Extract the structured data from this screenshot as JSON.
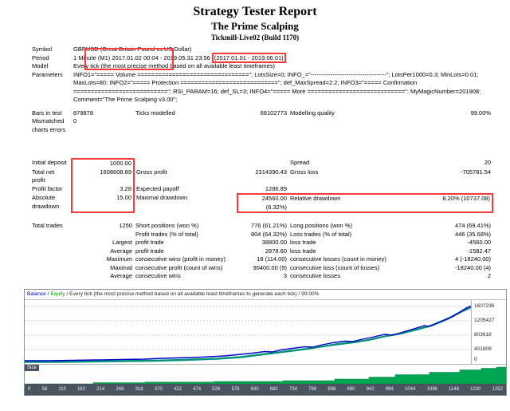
{
  "annotation_color": "#fb3b3b",
  "header": {
    "title": "Strategy Tester Report",
    "subtitle": "The Prime Scalping",
    "server": "Tickmill-Live02 (Build 1170)"
  },
  "table": {
    "symbol": {
      "label": "Symbol",
      "value": "GBPUSD (Great Britain Pound vs US Dollar)"
    },
    "period": {
      "label": "Period",
      "value": "1 Minute (M1) 2017.01.02 00:04 - 2019.05.31 23:56 ",
      "range": "(2017.01.01 - 2019.06.01)"
    },
    "model": {
      "label": "Model",
      "value": "Every tick (the most precise method based on all available least timeframes)"
    },
    "parameters": {
      "label": "Parameters",
      "value": "INFO1=\"===== Volume ================================\"; LotsSize=0; INFO_=\"--------------------------------------\"; LotsPer1000=0.3; MinLots=0.01; MaxLots=80; INFO2=\"===== Protection ============================\"; def_MaxSpread=2.2; INFO3=\"===== Confirmation ===========================\"; RSI_PARAM=16; def_SL=3; INFO4=\"===== More ============================\"; MyMagicNumber=201908; Comment=\"The Prime Scalping v3.00\";"
    },
    "bars": {
      "label": "Bars in test",
      "value": "879878"
    },
    "ticks": {
      "label": "Ticks modelled",
      "value": "68102773"
    },
    "quality": {
      "label": "Modelling quality",
      "value": "99.00%"
    },
    "mismatched": {
      "label": "Mismatched charts errors",
      "value": "0"
    },
    "deposit": {
      "label": "Initial deposit",
      "value": "1000.00"
    },
    "spread": {
      "label": "Spread",
      "value": "20"
    },
    "net_profit": {
      "label": "Total net profit",
      "value": "1608608.89"
    },
    "gross_profit": {
      "label": "Gross profit",
      "value": "2314390.43"
    },
    "gross_loss": {
      "label": "Gross loss",
      "value": "-705781.54"
    },
    "profit_factor": {
      "label": "Profit factor",
      "value": "3.28"
    },
    "expected_payoff": {
      "label": "Expected payoff",
      "value": "1286.89"
    },
    "abs_dd": {
      "label": "Absolute drawdown",
      "value": "15.00"
    },
    "max_dd": {
      "label": "Maximal drawdown",
      "value": "24560.00 (6.32%)"
    },
    "rel_dd": {
      "label": "Relative drawdown",
      "value": "8.20% (10737.08)"
    },
    "total_trades": {
      "label": "Total trades",
      "value": "1250"
    },
    "short_pos": {
      "label": "Short positions (won %)",
      "value": "776 (61.21%)"
    },
    "long_pos": {
      "label": "Long positions (won %)",
      "value": "474 (69.41%)"
    },
    "profit_trades": {
      "label": "Profit trades (% of total)",
      "value": "804 (64.32%)"
    },
    "loss_trades": {
      "label": "Loss trades (% of total)",
      "value": "446 (35.68%)"
    },
    "largest": {
      "label": "Largest",
      "p_label": "profit trade",
      "p": "38800.00",
      "l_label": "loss trade",
      "l": "-4560.00"
    },
    "average": {
      "label": "Average",
      "p_label": "profit trade",
      "p": "2878.60",
      "l_label": "loss trade",
      "l": "-1582.47"
    },
    "max_consec": {
      "label": "Maximum",
      "p_label": "consecutive wins (profit in money)",
      "p": "18 (114.00)",
      "l_label": "consecutive losses (count in money)",
      "l": "4 (-18240.00)"
    },
    "maximal_consec": {
      "label": "Maximal",
      "p_label": "consecutive profit (count of wins)",
      "p": "90400.00 (9)",
      "l_label": "consecutive loss (count of losses)",
      "l": "-18240.00 (4)"
    },
    "avg_consec": {
      "label": "Average",
      "p_label": "consecutive wins",
      "p": "3",
      "l_label": "consecutive losses",
      "l": "2"
    }
  },
  "chart": {
    "legend": {
      "balance": "Balance",
      "sep": " / ",
      "equity": "Equity",
      "desc": " / Every tick (the most precise method based on all available least timeframes to generate each tick) / 99.00%"
    },
    "size_label": "Size",
    "colors": {
      "balance": "#0000c8",
      "equity": "#00927a",
      "lots": "#00a651",
      "axis_bg": "#4a545e"
    },
    "y_labels": [
      "1607236",
      "1205427",
      "803618",
      "401809",
      "0"
    ],
    "x_labels": [
      "0",
      "58",
      "110",
      "162",
      "214",
      "266",
      "318",
      "370",
      "422",
      "474",
      "526",
      "578",
      "630",
      "682",
      "734",
      "786",
      "838",
      "890",
      "942",
      "994",
      "1044",
      "1096",
      "1148",
      "1200",
      "1252"
    ]
  }
}
